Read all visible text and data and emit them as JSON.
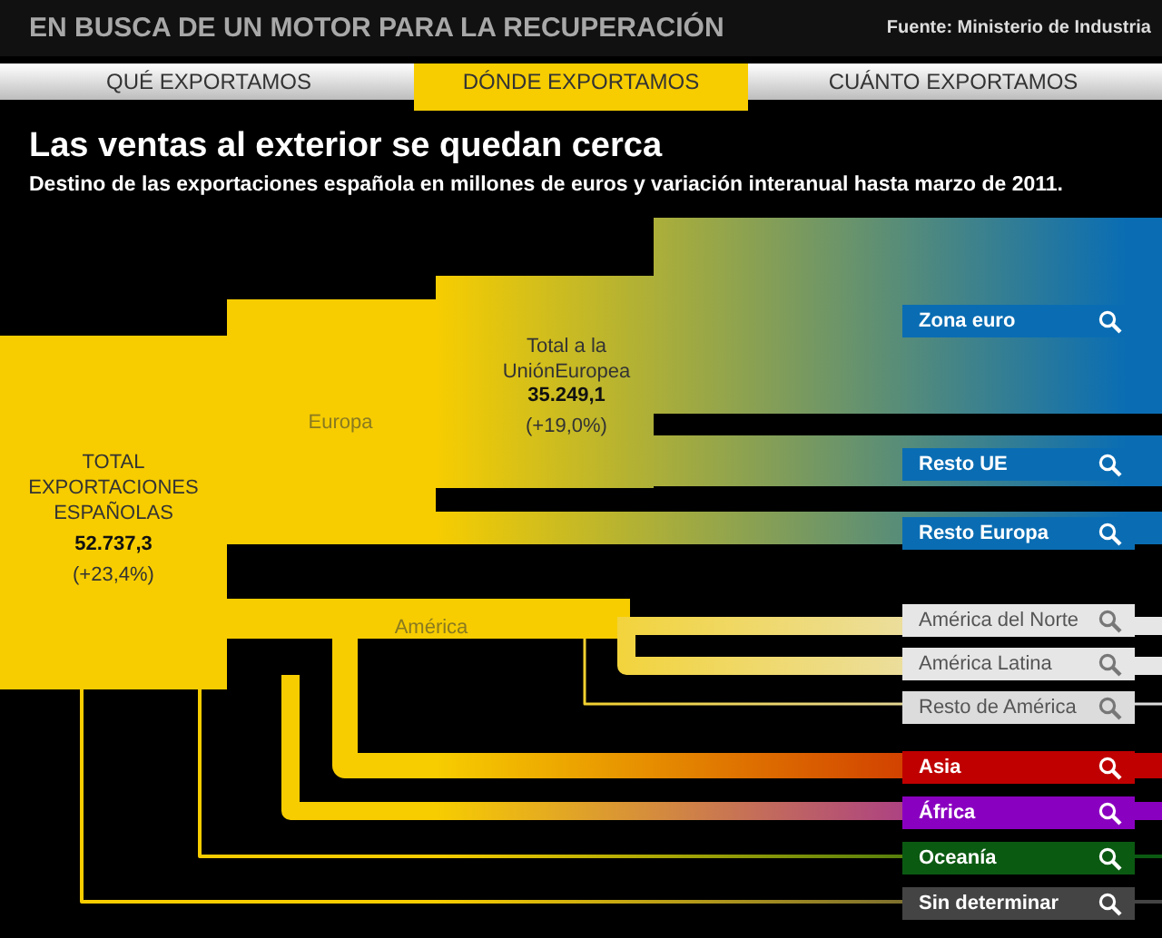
{
  "chart_data": {
    "type": "other",
    "title": "Las ventas al exterior se quedan cerca",
    "subtitle": "Destino de las exportaciones española en millones de euros y variación interanual hasta marzo de 2011.",
    "categories": [
      "TOTAL EXPORTACIONES ESPAÑOLAS",
      "Total  a la UniónEuropea",
      "Zona euro",
      "Resto UE",
      "Resto Europa",
      "América del Norte",
      "América Latina",
      "Resto de América",
      "Asia",
      "África",
      "Oceanía",
      "Sin determinar"
    ],
    "values": [
      52737.3,
      35249.1,
      null,
      null,
      null,
      null,
      null,
      null,
      null,
      null,
      null,
      null
    ],
    "value_labels": [
      "52.737,3",
      "35.249,1",
      null,
      null,
      null,
      null,
      null,
      null,
      null,
      null,
      null,
      null
    ],
    "colors": [
      "#f7cd00",
      "#f7cd00",
      "#0a6db3",
      "#0a6db3",
      "#0a6db3",
      "#e6e6e6",
      "#e6e6e6",
      "#dcdcdc",
      "#c00000",
      "#8a00c0",
      "#0b5a12",
      "#444444"
    ],
    "annotations": [
      "EN BUSCA DE UN MOTOR PARA LA RECUPERACIÓN",
      "Fuente:  Ministerio de Industria",
      "QUÉ EXPORTAMOS",
      "DÓNDE EXPORTAMOS",
      "CUÁNTO EXPORTAMOS",
      "(+23,4%)",
      "Europa",
      "(+19,0%)",
      "América"
    ]
  }
}
